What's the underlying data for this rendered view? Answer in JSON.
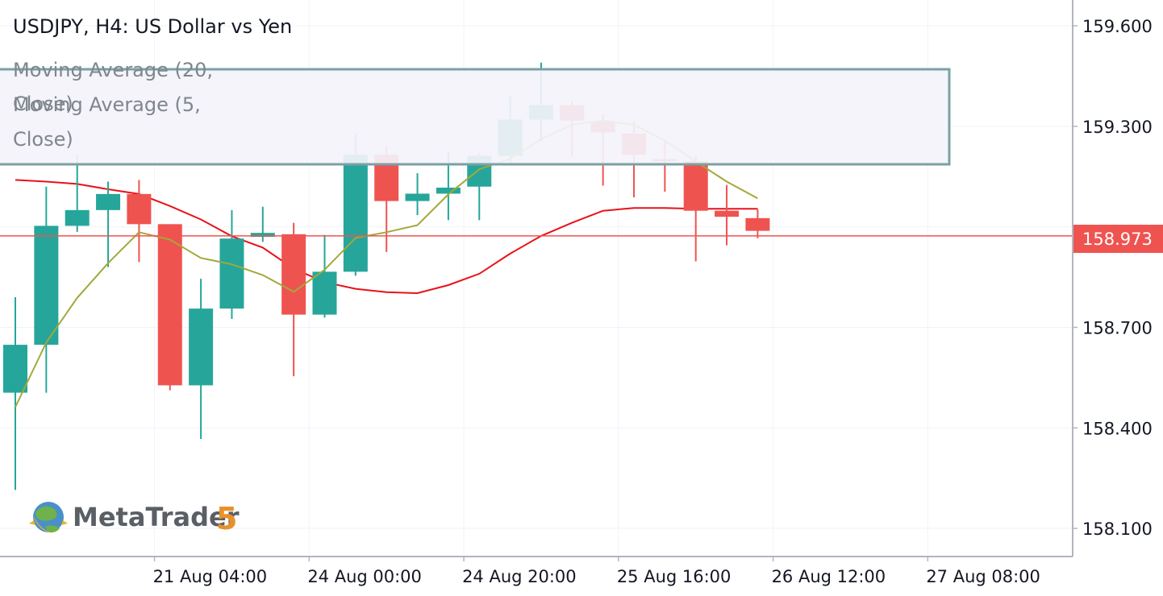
{
  "header": {
    "symbol_title": "USDJPY, H4: US Dollar vs Yen"
  },
  "legend": {
    "ma20_line1": "Moving Average (20,",
    "ma20_line2": "Close)",
    "ma5_line1": "Moving Average (5,",
    "ma5_line2": "Close)"
  },
  "logo": {
    "text": "MetaTrader",
    "version": "5"
  },
  "current_price": {
    "label": "158.973",
    "value": 158.973
  },
  "colors": {
    "bullish": "#26a69a",
    "bearish": "#ef5350",
    "ma20": "#e8111a",
    "ma5": "#a3a83a",
    "grid": "#f0f3fa",
    "axis": "#b2b5be",
    "price_tag": "#ef5350"
  },
  "chart_data": {
    "type": "candlestick",
    "title": "USDJPY, H4: US Dollar vs Yen",
    "ylim": [
      158.016,
      159.677
    ],
    "y_ticks": [
      159.6,
      159.3,
      159.0,
      158.7,
      158.4,
      158.1
    ],
    "y_tick_labels": [
      "159.600",
      "159.300",
      "",
      "158.700",
      "158.400",
      "158.100"
    ],
    "x_tick_labels": [
      "21 Aug 04:00",
      "24 Aug 00:00",
      "24 Aug 20:00",
      "25 Aug 16:00",
      "26 Aug 12:00",
      "27 Aug 08:00"
    ],
    "x_tick_bar_index": [
      4.5,
      9.5,
      14.5,
      19.5,
      24.5,
      29.5
    ],
    "candles": [
      {
        "o": 158.505,
        "h": 158.79,
        "l": 158.215,
        "c": 158.648
      },
      {
        "o": 158.648,
        "h": 159.12,
        "l": 158.505,
        "c": 159.003
      },
      {
        "o": 159.003,
        "h": 159.215,
        "l": 158.985,
        "c": 159.05
      },
      {
        "o": 159.05,
        "h": 159.135,
        "l": 158.88,
        "c": 159.098
      },
      {
        "o": 159.098,
        "h": 159.14,
        "l": 158.895,
        "c": 159.008
      },
      {
        "o": 159.008,
        "h": 159.008,
        "l": 158.512,
        "c": 158.527
      },
      {
        "o": 158.527,
        "h": 158.845,
        "l": 158.367,
        "c": 158.756
      },
      {
        "o": 158.756,
        "h": 159.05,
        "l": 158.725,
        "c": 158.965
      },
      {
        "o": 158.97,
        "h": 159.06,
        "l": 158.955,
        "c": 158.982
      },
      {
        "o": 158.978,
        "h": 159.012,
        "l": 158.554,
        "c": 158.738
      },
      {
        "o": 158.738,
        "h": 158.976,
        "l": 158.729,
        "c": 158.866
      },
      {
        "o": 158.866,
        "h": 159.28,
        "l": 158.854,
        "c": 159.215
      },
      {
        "o": 159.215,
        "h": 159.24,
        "l": 158.925,
        "c": 159.077
      },
      {
        "o": 159.077,
        "h": 159.16,
        "l": 159.035,
        "c": 159.099
      },
      {
        "o": 159.099,
        "h": 159.225,
        "l": 159.02,
        "c": 159.117
      },
      {
        "o": 159.12,
        "h": 159.22,
        "l": 159.02,
        "c": 159.212
      },
      {
        "o": 159.212,
        "h": 159.39,
        "l": 159.19,
        "c": 159.32
      },
      {
        "o": 159.32,
        "h": 159.49,
        "l": 159.255,
        "c": 159.363
      },
      {
        "o": 159.363,
        "h": 159.375,
        "l": 159.21,
        "c": 159.317
      },
      {
        "o": 159.315,
        "h": 159.335,
        "l": 159.123,
        "c": 159.282
      },
      {
        "o": 159.278,
        "h": 159.315,
        "l": 159.088,
        "c": 159.215
      },
      {
        "o": 159.202,
        "h": 159.255,
        "l": 159.105,
        "c": 159.196
      },
      {
        "o": 159.196,
        "h": 159.21,
        "l": 158.897,
        "c": 159.048
      },
      {
        "o": 159.048,
        "h": 159.125,
        "l": 158.945,
        "c": 159.03
      },
      {
        "o": 159.026,
        "h": 159.053,
        "l": 158.966,
        "c": 158.988
      }
    ],
    "ma20": [
      159.14,
      159.135,
      159.128,
      159.112,
      159.098,
      159.062,
      159.022,
      158.972,
      158.938,
      158.875,
      158.835,
      158.815,
      158.805,
      158.802,
      158.826,
      158.86,
      158.92,
      158.973,
      159.012,
      159.048,
      159.056,
      159.056,
      159.054,
      159.054,
      159.054
    ],
    "ma5": [
      158.462,
      158.655,
      158.788,
      158.892,
      158.984,
      158.962,
      158.907,
      158.888,
      158.856,
      158.806,
      158.872,
      158.967,
      158.984,
      159.005,
      159.097,
      159.172,
      159.203,
      159.262,
      159.305,
      159.317,
      159.305,
      159.257,
      159.195,
      159.135,
      159.085
    ]
  }
}
